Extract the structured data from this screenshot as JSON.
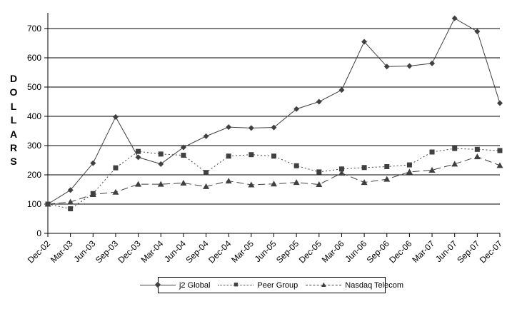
{
  "chart_data": {
    "type": "line",
    "title": "",
    "xlabel": "",
    "ylabel": "DOLLARS",
    "ylim": [
      0,
      755
    ],
    "yticks": [
      0,
      100,
      200,
      300,
      400,
      500,
      600,
      700
    ],
    "grid": true,
    "legend_position": "bottom-center",
    "categories": [
      "Dec-02",
      "Mar-03",
      "Jun-03",
      "Sep-03",
      "Dec-03",
      "Mar-04",
      "Jun-04",
      "Sep-04",
      "Dec-04",
      "Mar-05",
      "Jun-05",
      "Sep-05",
      "Dec-05",
      "Mar-06",
      "Jun-06",
      "Sep-06",
      "Dec-06",
      "Mar-07",
      "Jun-07",
      "Sep-07",
      "Dec-07"
    ],
    "series": [
      {
        "name": "j2 Global",
        "marker": "diamond",
        "line": "solid",
        "values": [
          100,
          148,
          240,
          398,
          260,
          237,
          294,
          332,
          363,
          360,
          362,
          425,
          450,
          490,
          655,
          570,
          572,
          581,
          735,
          690,
          445
        ]
      },
      {
        "name": "Peer Group",
        "marker": "square",
        "line": "dotted",
        "values": [
          100,
          84,
          136,
          224,
          280,
          271,
          267,
          208,
          264,
          269,
          264,
          231,
          210,
          220,
          225,
          228,
          234,
          278,
          290,
          287,
          283
        ]
      },
      {
        "name": "Nasdaq Telecom",
        "marker": "triangle",
        "line": "dashed",
        "values": [
          100,
          107,
          133,
          141,
          168,
          168,
          172,
          160,
          179,
          166,
          169,
          174,
          167,
          206,
          174,
          185,
          210,
          216,
          237,
          262,
          232
        ]
      }
    ],
    "colors": {
      "series": "#404040",
      "axis": "#000000",
      "text": "#000000",
      "background": "#ffffff"
    }
  }
}
